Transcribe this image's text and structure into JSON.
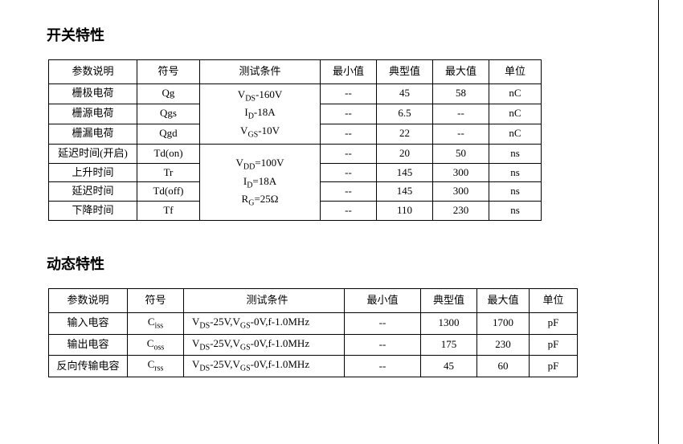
{
  "section1": {
    "title": "开关特性",
    "headers": [
      "参数说明",
      "符号",
      "测试条件",
      "最小值",
      "典型值",
      "最大值",
      "单位"
    ],
    "cond1_l1_a": "V",
    "cond1_l1_sub": "DS",
    "cond1_l1_b": "-160V",
    "cond1_l2_a": "I",
    "cond1_l2_sub": "D",
    "cond1_l2_b": "-18A",
    "cond1_l3_a": "V",
    "cond1_l3_sub": "GS",
    "cond1_l3_b": "-10V",
    "cond2_l1_a": "V",
    "cond2_l1_sub": "DD",
    "cond2_l1_b": "=100V",
    "cond2_l2_a": "I",
    "cond2_l2_sub": "D",
    "cond2_l2_b": "=18A",
    "cond2_l3_a": "R",
    "cond2_l3_sub": "G",
    "cond2_l3_b": "=25Ω",
    "r1": {
      "param": "栅极电荷",
      "sym": "Qg",
      "min": "--",
      "typ": "45",
      "max": "58",
      "unit": "nC"
    },
    "r2": {
      "param": "栅源电荷",
      "sym": "Qgs",
      "min": "--",
      "typ": "6.5",
      "max": "--",
      "unit": "nC"
    },
    "r3": {
      "param": "栅漏电荷",
      "sym": "Qgd",
      "min": "--",
      "typ": "22",
      "max": "--",
      "unit": "nC"
    },
    "r4": {
      "param": "延迟时间(开启)",
      "sym": "Td(on)",
      "min": "--",
      "typ": "20",
      "max": "50",
      "unit": "ns"
    },
    "r5": {
      "param": "上升时间",
      "sym": "Tr",
      "min": "--",
      "typ": "145",
      "max": "300",
      "unit": "ns"
    },
    "r6": {
      "param": "延迟时间",
      "sym": "Td(off)",
      "min": "--",
      "typ": "145",
      "max": "300",
      "unit": "ns"
    },
    "r7": {
      "param": "下降时间",
      "sym": "Tf",
      "min": "--",
      "typ": "110",
      "max": "230",
      "unit": "ns"
    }
  },
  "section2": {
    "title": "动态特性",
    "headers": [
      "参数说明",
      "符号",
      "测试条件",
      "最小值",
      "典型值",
      "最大值",
      "单位"
    ],
    "cond_a": "V",
    "cond_sub1": "DS",
    "cond_b": "-25V,V",
    "cond_sub2": "GS",
    "cond_c": "-0V,f-1.0MHz",
    "r1": {
      "param": "输入电容",
      "sym_a": "C",
      "sym_sub": "iss",
      "min": "--",
      "typ": "1300",
      "max": "1700",
      "unit": "pF"
    },
    "r2": {
      "param": "输出电容",
      "sym_a": "C",
      "sym_sub": "oss",
      "min": "--",
      "typ": "175",
      "max": "230",
      "unit": "pF"
    },
    "r3": {
      "param": "反向传输电容",
      "sym_a": "C",
      "sym_sub": "rss",
      "min": "--",
      "typ": "45",
      "max": "60",
      "unit": "pF"
    }
  },
  "styling": {
    "font_family": "SimSun / Times",
    "title_fontsize_pt": 18,
    "body_fontsize_pt": 13,
    "border_color": "#000000",
    "background_color": "#ffffff",
    "text_color": "#000000"
  }
}
